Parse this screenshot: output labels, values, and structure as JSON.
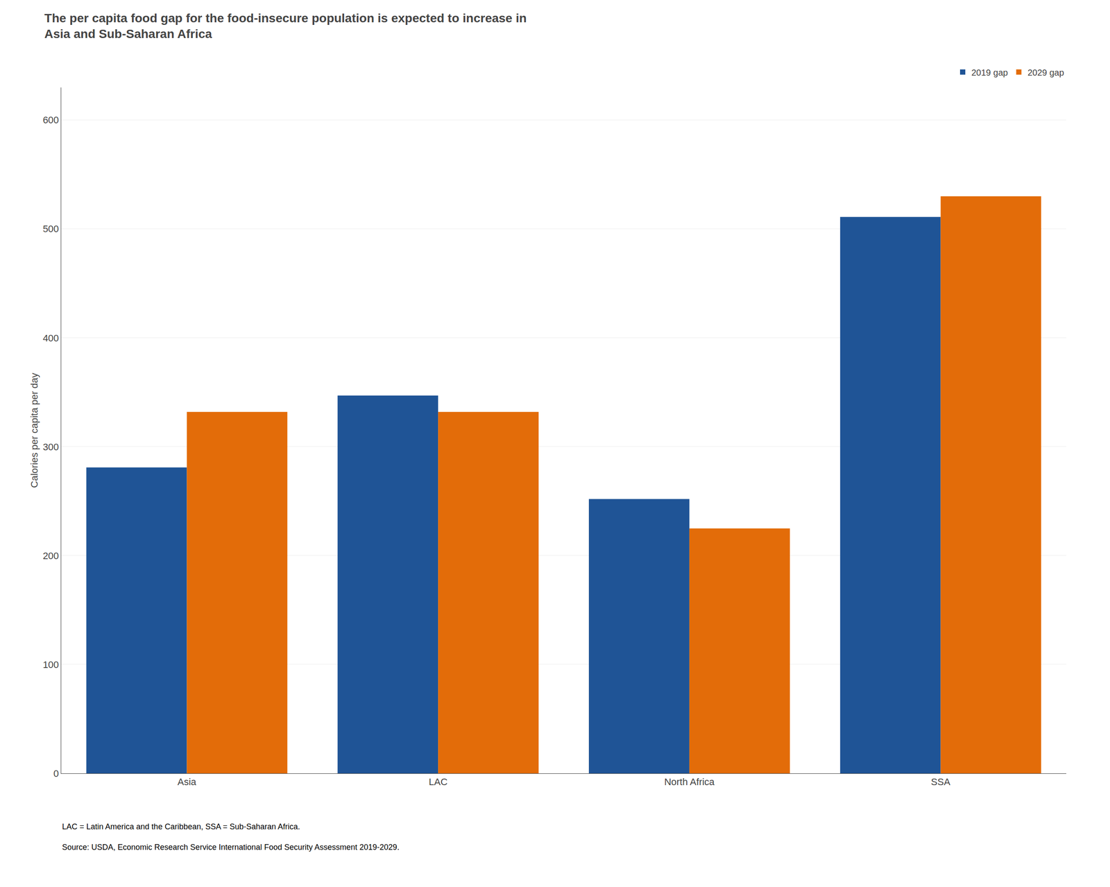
{
  "chart_data": {
    "type": "bar",
    "title": "The per capita food gap for the food-insecure population is expected to increase in\nAsia and Sub-Saharan Africa",
    "ylabel": "Calories per capita per day",
    "categories": [
      "Asia",
      "LAC",
      "North Africa",
      "SSA"
    ],
    "series": [
      {
        "name": "2019 gap",
        "color": "#1f5496",
        "values": [
          281,
          347,
          252,
          511
        ]
      },
      {
        "name": "2029 gap",
        "color": "#e36c09",
        "values": [
          332,
          332,
          225,
          530
        ]
      }
    ],
    "ylim": [
      0,
      630
    ],
    "yticks": [
      0,
      100,
      200,
      300,
      400,
      500,
      600
    ],
    "grid": true,
    "legend": "upper right",
    "annotations": [
      "LAC = Latin America and the Caribbean, SSA = Sub-Saharan Africa.",
      "Source: USDA, Economic Research Service International Food Security Assessment 2019-2029."
    ]
  }
}
